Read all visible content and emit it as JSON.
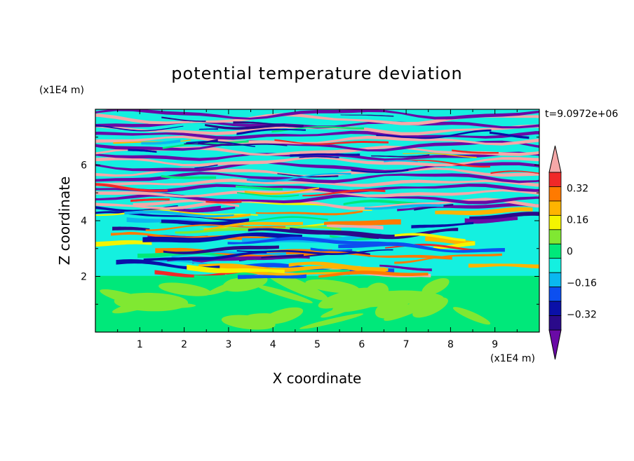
{
  "chart_data": {
    "type": "heatmap",
    "title": "potential temperature deviation",
    "xlabel": "X coordinate",
    "ylabel": "Z coordinate",
    "x_unit": "(x1E4 m)",
    "y_unit": "(x1E4 m)",
    "time_label": "t=9.0972e+06",
    "xlim": [
      0,
      10
    ],
    "ylim": [
      0,
      8
    ],
    "x_ticks": [
      "1",
      "2",
      "3",
      "4",
      "5",
      "6",
      "7",
      "8",
      "9"
    ],
    "y_ticks": [
      "2",
      "4",
      "6"
    ],
    "colorbar": {
      "levels": [
        -0.48,
        -0.4,
        -0.32,
        -0.24,
        -0.16,
        -0.08,
        0,
        0.08,
        0.16,
        0.24,
        0.32,
        0.4,
        0.48
      ],
      "colors": [
        "#6a0aa6",
        "#2a0a8a",
        "#0a10a8",
        "#0c4ff0",
        "#0ab8f0",
        "#14f0e0",
        "#00e87a",
        "#80e832",
        "#f4f400",
        "#ffb400",
        "#ff7a00",
        "#f02828",
        "#f5a8a8"
      ],
      "tick_labels": [
        "0.32",
        "0.16",
        "0",
        "−0.16",
        "−0.32"
      ],
      "extend": "both"
    },
    "description_bands": {
      "lower_layer_z": [
        0,
        2
      ],
      "upper_layer_z": [
        2,
        8
      ]
    }
  },
  "colors": {
    "plot_bg": "#14f0e0",
    "lower_base": "#00e87a",
    "lower_patch": "#80e832"
  }
}
